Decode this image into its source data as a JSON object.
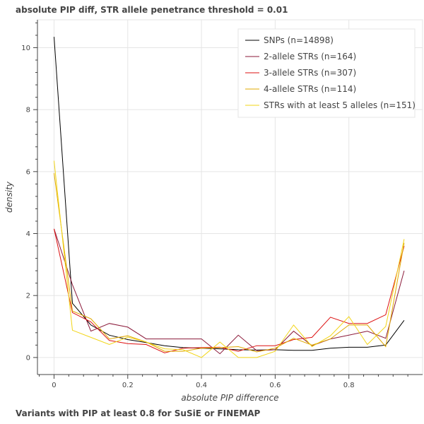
{
  "title": "absolute PIP diff, STR allele penetrance threshold = 0.01",
  "caption": "Variants with PIP at least 0.8 for SuSiE or FINEMAP",
  "chart_data": {
    "type": "line",
    "xlabel": "absolute PIP difference",
    "ylabel": "density",
    "xlim": [
      -0.045,
      1.0
    ],
    "ylim": [
      -0.55,
      10.9
    ],
    "x_ticks": [
      0,
      0.2,
      0.4,
      0.6,
      0.8
    ],
    "x_tick_labels": [
      "0",
      "0.2",
      "0.4",
      "0.6",
      "0.8"
    ],
    "y_ticks": [
      0,
      2,
      4,
      6,
      8,
      10
    ],
    "y_tick_labels": [
      "0",
      "2",
      "4",
      "6",
      "8",
      "10"
    ],
    "grid": true,
    "legend_position": "top-right",
    "x": [
      0,
      0.05,
      0.1,
      0.15,
      0.2,
      0.25,
      0.3,
      0.35,
      0.4,
      0.45,
      0.5,
      0.55,
      0.6,
      0.65,
      0.7,
      0.75,
      0.8,
      0.85,
      0.9,
      0.95
    ],
    "series": [
      {
        "name": "SNPs (n=14898)",
        "color": "#000000",
        "values": [
          10.35,
          1.75,
          1.05,
          0.72,
          0.58,
          0.48,
          0.38,
          0.32,
          0.3,
          0.28,
          0.25,
          0.24,
          0.25,
          0.23,
          0.23,
          0.3,
          0.33,
          0.33,
          0.4,
          1.2
        ]
      },
      {
        "name": "2-allele STRs (n=164)",
        "color": "#8b1a3a",
        "values": [
          4.15,
          2.35,
          0.85,
          1.1,
          0.98,
          0.6,
          0.6,
          0.6,
          0.6,
          0.12,
          0.72,
          0.22,
          0.25,
          0.85,
          0.38,
          0.6,
          0.72,
          0.85,
          0.62,
          2.8
        ]
      },
      {
        "name": "3-allele STRs (n=307)",
        "color": "#dd1111",
        "values": [
          4.15,
          1.45,
          1.15,
          0.55,
          0.45,
          0.42,
          0.15,
          0.3,
          0.32,
          0.33,
          0.2,
          0.38,
          0.38,
          0.58,
          0.65,
          1.3,
          1.1,
          1.1,
          1.38,
          3.6
        ]
      },
      {
        "name": "4-allele STRs (n=114)",
        "color": "#e0a800",
        "values": [
          5.95,
          1.5,
          1.25,
          0.6,
          0.7,
          0.5,
          0.2,
          0.2,
          0.3,
          0.32,
          0.35,
          0.18,
          0.3,
          0.62,
          0.4,
          0.6,
          1.05,
          1.05,
          0.35,
          3.7
        ]
      },
      {
        "name": "STRs with at least 5 alleles (n=151)",
        "color": "#f2d516",
        "values": [
          6.35,
          0.88,
          0.65,
          0.42,
          0.66,
          0.5,
          0.28,
          0.25,
          0.0,
          0.5,
          0.0,
          0.0,
          0.2,
          1.05,
          0.35,
          0.7,
          1.32,
          0.42,
          1.0,
          3.82
        ]
      }
    ]
  }
}
